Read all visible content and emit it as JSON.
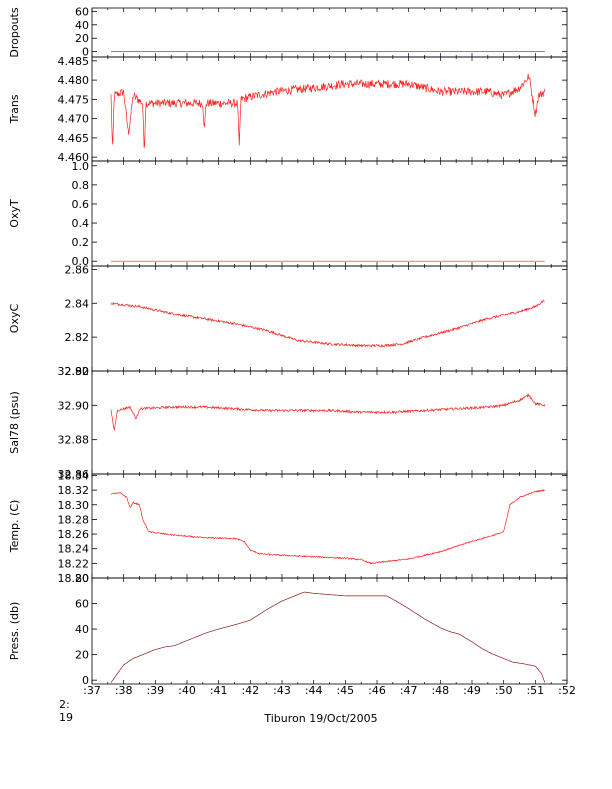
{
  "chart_data": {
    "type": "line",
    "xlabel": "Tiburon 19/Oct/2005",
    "x_origin_label": [
      "2:",
      "19"
    ],
    "x_ticks": [
      ":37",
      ":38",
      ":39",
      ":40",
      ":41",
      ":42",
      ":43",
      ":44",
      ":45",
      ":46",
      ":47",
      ":48",
      ":49",
      ":50",
      ":51",
      ":52"
    ],
    "xlim": [
      37,
      52
    ],
    "line_color": "#ff2020",
    "panels": [
      {
        "ylabel": "Dropouts",
        "ylim": [
          -8,
          65
        ],
        "yticks": [
          {
            "v": 0,
            "label": "0"
          },
          {
            "v": 20,
            "label": "20"
          },
          {
            "v": 40,
            "label": "40"
          },
          {
            "v": 60,
            "label": "60"
          }
        ],
        "noise": 0,
        "points": [
          [
            37.6,
            0
          ],
          [
            51.3,
            0
          ]
        ]
      },
      {
        "ylabel": "Trans",
        "ylim": [
          4.459,
          4.486
        ],
        "yticks": [
          {
            "v": 4.46,
            "label": "4.460"
          },
          {
            "v": 4.465,
            "label": "4.465"
          },
          {
            "v": 4.47,
            "label": "4.470"
          },
          {
            "v": 4.475,
            "label": "4.475"
          },
          {
            "v": 4.48,
            "label": "4.480"
          },
          {
            "v": 4.485,
            "label": "4.485"
          }
        ],
        "noise": 0.0011,
        "points": [
          [
            37.6,
            4.476
          ],
          [
            37.65,
            4.461
          ],
          [
            37.7,
            4.476
          ],
          [
            38.0,
            4.477
          ],
          [
            38.15,
            4.466
          ],
          [
            38.3,
            4.476
          ],
          [
            38.6,
            4.474
          ],
          [
            38.65,
            4.461
          ],
          [
            38.7,
            4.474
          ],
          [
            39.5,
            4.474
          ],
          [
            40.5,
            4.474
          ],
          [
            40.55,
            4.467
          ],
          [
            40.6,
            4.474
          ],
          [
            41.6,
            4.474
          ],
          [
            41.65,
            4.462
          ],
          [
            41.7,
            4.475
          ],
          [
            42.2,
            4.476
          ],
          [
            42.8,
            4.477
          ],
          [
            44.0,
            4.478
          ],
          [
            45.0,
            4.479
          ],
          [
            46.0,
            4.479
          ],
          [
            47.0,
            4.479
          ],
          [
            48.0,
            4.477
          ],
          [
            48.5,
            4.477
          ],
          [
            49.5,
            4.477
          ],
          [
            50.0,
            4.476
          ],
          [
            50.5,
            4.478
          ],
          [
            50.8,
            4.481
          ],
          [
            51.0,
            4.471
          ],
          [
            51.1,
            4.476
          ],
          [
            51.3,
            4.477
          ]
        ]
      },
      {
        "ylabel": "OxyT",
        "ylim": [
          -0.05,
          1.05
        ],
        "yticks": [
          {
            "v": 0.0,
            "label": "0.0"
          },
          {
            "v": 0.2,
            "label": "0.2"
          },
          {
            "v": 0.4,
            "label": "0.4"
          },
          {
            "v": 0.6,
            "label": "0.6"
          },
          {
            "v": 0.8,
            "label": "0.8"
          },
          {
            "v": 1.0,
            "label": "1.0"
          }
        ],
        "noise": 0,
        "points": [
          [
            37.6,
            0
          ],
          [
            51.3,
            0
          ]
        ]
      },
      {
        "ylabel": "OxyC",
        "ylim": [
          2.8,
          2.862
        ],
        "yticks": [
          {
            "v": 2.8,
            "label": "2.80"
          },
          {
            "v": 2.82,
            "label": "2.82"
          },
          {
            "v": 2.84,
            "label": "2.84"
          },
          {
            "v": 2.86,
            "label": "2.86"
          }
        ],
        "noise": 0.0007,
        "points": [
          [
            37.6,
            2.84
          ],
          [
            38.5,
            2.838
          ],
          [
            39.5,
            2.834
          ],
          [
            40.5,
            2.831
          ],
          [
            41.5,
            2.828
          ],
          [
            42.5,
            2.824
          ],
          [
            43.5,
            2.818
          ],
          [
            44.5,
            2.816
          ],
          [
            45.5,
            2.815
          ],
          [
            46.2,
            2.815
          ],
          [
            46.8,
            2.816
          ],
          [
            47.5,
            2.82
          ],
          [
            48.5,
            2.825
          ],
          [
            49.5,
            2.831
          ],
          [
            50.5,
            2.835
          ],
          [
            51.0,
            2.838
          ],
          [
            51.3,
            2.842
          ]
        ]
      },
      {
        "ylabel": "Sal78 (psu)",
        "ylim": [
          32.86,
          32.92
        ],
        "yticks": [
          {
            "v": 32.86,
            "label": "32.86"
          },
          {
            "v": 32.88,
            "label": "32.88"
          },
          {
            "v": 32.9,
            "label": "32.90"
          },
          {
            "v": 32.92,
            "label": "32.92"
          }
        ],
        "noise": 0.0007,
        "points": [
          [
            37.6,
            32.897
          ],
          [
            37.7,
            32.885
          ],
          [
            37.8,
            32.897
          ],
          [
            38.2,
            32.899
          ],
          [
            38.4,
            32.892
          ],
          [
            38.5,
            32.898
          ],
          [
            39.5,
            32.899
          ],
          [
            40.5,
            32.899
          ],
          [
            41.5,
            32.898
          ],
          [
            42.5,
            32.897
          ],
          [
            43.5,
            32.897
          ],
          [
            44.5,
            32.897
          ],
          [
            45.5,
            32.896
          ],
          [
            46.5,
            32.896
          ],
          [
            47.5,
            32.897
          ],
          [
            48.5,
            32.898
          ],
          [
            49.5,
            32.899
          ],
          [
            50.0,
            32.9
          ],
          [
            50.5,
            32.903
          ],
          [
            50.8,
            32.906
          ],
          [
            51.0,
            32.901
          ],
          [
            51.3,
            32.9
          ]
        ]
      },
      {
        "ylabel": "Temp. (C)",
        "ylim": [
          18.2,
          18.342
        ],
        "yticks": [
          {
            "v": 18.2,
            "label": "18.20"
          },
          {
            "v": 18.22,
            "label": "18.22"
          },
          {
            "v": 18.24,
            "label": "18.24"
          },
          {
            "v": 18.26,
            "label": "18.26"
          },
          {
            "v": 18.28,
            "label": "18.28"
          },
          {
            "v": 18.3,
            "label": "18.30"
          },
          {
            "v": 18.32,
            "label": "18.32"
          },
          {
            "v": 18.34,
            "label": "18.34"
          }
        ],
        "noise": 0.0009,
        "points": [
          [
            37.6,
            18.315
          ],
          [
            37.9,
            18.316
          ],
          [
            38.1,
            18.31
          ],
          [
            38.2,
            18.296
          ],
          [
            38.3,
            18.303
          ],
          [
            38.5,
            18.3
          ],
          [
            38.6,
            18.28
          ],
          [
            38.8,
            18.263
          ],
          [
            39.5,
            18.259
          ],
          [
            40.5,
            18.255
          ],
          [
            41.5,
            18.254
          ],
          [
            41.8,
            18.25
          ],
          [
            42.0,
            18.238
          ],
          [
            42.3,
            18.233
          ],
          [
            43.0,
            18.231
          ],
          [
            44.0,
            18.229
          ],
          [
            45.0,
            18.227
          ],
          [
            45.5,
            18.225
          ],
          [
            45.8,
            18.22
          ],
          [
            46.2,
            18.222
          ],
          [
            47.0,
            18.226
          ],
          [
            48.0,
            18.236
          ],
          [
            49.0,
            18.25
          ],
          [
            49.8,
            18.26
          ],
          [
            50.0,
            18.263
          ],
          [
            50.2,
            18.3
          ],
          [
            50.5,
            18.31
          ],
          [
            51.0,
            18.318
          ],
          [
            51.3,
            18.32
          ]
        ]
      },
      {
        "ylabel": "Press. (db)",
        "ylim": [
          -3,
          80
        ],
        "yticks": [
          {
            "v": 0,
            "label": "0"
          },
          {
            "v": 20,
            "label": "20"
          },
          {
            "v": 40,
            "label": "40"
          },
          {
            "v": 60,
            "label": "60"
          },
          {
            "v": 80,
            "label": "80"
          }
        ],
        "noise": 0,
        "line_color": "#8b1a1a",
        "points": [
          [
            37.6,
            -2
          ],
          [
            37.8,
            5
          ],
          [
            38.0,
            12
          ],
          [
            38.3,
            17
          ],
          [
            38.6,
            20
          ],
          [
            39.0,
            24
          ],
          [
            39.3,
            26
          ],
          [
            39.6,
            27
          ],
          [
            40.0,
            31
          ],
          [
            40.3,
            34
          ],
          [
            40.6,
            37
          ],
          [
            41.0,
            40
          ],
          [
            41.3,
            42
          ],
          [
            41.6,
            44
          ],
          [
            42.0,
            47
          ],
          [
            42.5,
            55
          ],
          [
            43.0,
            62
          ],
          [
            43.5,
            67
          ],
          [
            43.7,
            69
          ],
          [
            44.0,
            68
          ],
          [
            44.5,
            67
          ],
          [
            45.0,
            66
          ],
          [
            45.5,
            66
          ],
          [
            46.0,
            66
          ],
          [
            46.3,
            66
          ],
          [
            46.6,
            62
          ],
          [
            47.0,
            56
          ],
          [
            47.5,
            48
          ],
          [
            48.0,
            41
          ],
          [
            48.3,
            38
          ],
          [
            48.6,
            36
          ],
          [
            49.0,
            30
          ],
          [
            49.3,
            25
          ],
          [
            49.6,
            21
          ],
          [
            50.0,
            17
          ],
          [
            50.3,
            14
          ],
          [
            50.6,
            13
          ],
          [
            51.0,
            11
          ],
          [
            51.2,
            5
          ],
          [
            51.3,
            -2
          ]
        ]
      }
    ]
  }
}
